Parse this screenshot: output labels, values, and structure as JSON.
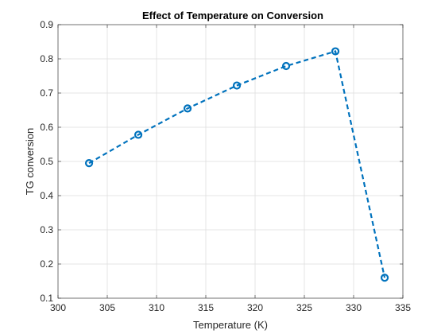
{
  "chart_data": {
    "type": "line",
    "title": "Effect of Temperature on Conversion",
    "xlabel": "Temperature (K)",
    "ylabel": "TG conversion",
    "xlim": [
      300,
      335
    ],
    "ylim": [
      0.1,
      0.9
    ],
    "xticks": [
      "300",
      "305",
      "310",
      "315",
      "320",
      "325",
      "330",
      "335"
    ],
    "yticks": [
      "0.1",
      "0.2",
      "0.3",
      "0.4",
      "0.5",
      "0.6",
      "0.7",
      "0.8",
      "0.9"
    ],
    "grid": true,
    "series": [
      {
        "x": [
          303.15,
          308.15,
          313.15,
          318.15,
          323.15,
          328.15,
          333.15
        ],
        "y": [
          0.495,
          0.578,
          0.655,
          0.722,
          0.779,
          0.822,
          0.16
        ],
        "line_style": "dashed",
        "marker": "circle",
        "color": "#0072BD"
      }
    ]
  }
}
